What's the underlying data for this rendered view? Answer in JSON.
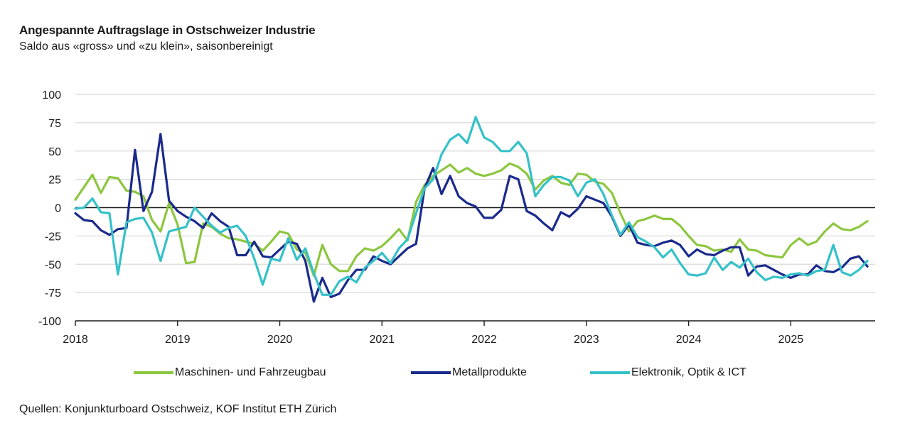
{
  "header": {
    "title": "Angespannte Auftragslage in Ostschweizer Industrie",
    "subtitle": "Saldo aus «gross» und «zu klein», saisonbereinigt"
  },
  "footer": {
    "source": "Quellen: Konjunkturboard Ostschweiz, KOF Institut ETH Zürich"
  },
  "chart_data": {
    "type": "line",
    "title": "Angespannte Auftragslage in Ostschweizer Industrie",
    "subtitle": "Saldo aus «gross» und «zu klein», saisonbereinigt",
    "xlabel": "",
    "ylabel": "",
    "x_start": "2018-01",
    "x_frequency": "monthly",
    "x_ticks": [
      "2018",
      "2019",
      "2020",
      "2021",
      "2022",
      "2023",
      "2024",
      "2025"
    ],
    "y_ticks": [
      100,
      75,
      50,
      25,
      0,
      -25,
      -50,
      -75,
      -100
    ],
    "ylim": [
      -100,
      100
    ],
    "xlim_months": [
      0,
      94
    ],
    "grid": true,
    "zero_line": true,
    "legend_position": "bottom",
    "series": [
      {
        "name": "Maschinen- und Fahrzeugbau",
        "color": "#8dc63f",
        "values": [
          7,
          18,
          29,
          13,
          27,
          26,
          15,
          14,
          10,
          -11,
          -21,
          4,
          -15,
          -49,
          -48,
          -14,
          -17,
          -23,
          -27,
          -28,
          -30,
          -32,
          -38,
          -30,
          -21,
          -23,
          -37,
          -40,
          -60,
          -33,
          -50,
          -56,
          -56,
          -43,
          -36,
          -38,
          -34,
          -27,
          -19,
          -29,
          5,
          20,
          28,
          33,
          38,
          31,
          35,
          30,
          28,
          30,
          33,
          39,
          36,
          30,
          16,
          24,
          28,
          22,
          20,
          30,
          29,
          23,
          21,
          13,
          -5,
          -21,
          -12,
          -10,
          -7,
          -10,
          -10,
          -16,
          -25,
          -33,
          -34,
          -38,
          -37,
          -39,
          -28,
          -37,
          -38,
          -42,
          -43,
          -44,
          -33,
          -27,
          -33,
          -30,
          -21,
          -14,
          -19,
          -20,
          -17,
          -12
        ]
      },
      {
        "name": "Metallprodukte",
        "color": "#1a2a8c",
        "values": [
          -5,
          -11,
          -12,
          -20,
          -24,
          -19,
          -18,
          51,
          -3,
          14,
          65,
          6,
          -3,
          -8,
          -12,
          -18,
          -5,
          -12,
          -17,
          -42,
          -42,
          -30,
          -43,
          -44,
          -37,
          -30,
          -32,
          -47,
          -83,
          -62,
          -79,
          -76,
          -64,
          -55,
          -55,
          -43,
          -47,
          -50,
          -43,
          -36,
          -32,
          17,
          35,
          12,
          28,
          10,
          4,
          1,
          -9,
          -9,
          -2,
          28,
          25,
          -3,
          -7,
          -14,
          -20,
          -4,
          -8,
          -1,
          10,
          7,
          4,
          -8,
          -25,
          -15,
          -31,
          -33,
          -34,
          -31,
          -29,
          -33,
          -43,
          -37,
          -41,
          -42,
          -38,
          -35,
          -35,
          -60,
          -52,
          -51,
          -55,
          -59,
          -62,
          -59,
          -59,
          -51,
          -56,
          -57,
          -53,
          -45,
          -43,
          -52
        ]
      },
      {
        "name": "Elektronik, Optik & ICT",
        "color": "#35c1c8",
        "values": [
          -1,
          0,
          8,
          -4,
          -5,
          -59,
          -13,
          -10,
          -9,
          -22,
          -47,
          -21,
          -19,
          -17,
          0,
          -8,
          -16,
          -22,
          -18,
          -16,
          -25,
          -45,
          -68,
          -45,
          -47,
          -27,
          -46,
          -36,
          -58,
          -77,
          -77,
          -65,
          -61,
          -66,
          -53,
          -47,
          -40,
          -49,
          -36,
          -28,
          -5,
          17,
          25,
          47,
          60,
          65,
          57,
          80,
          62,
          58,
          50,
          50,
          58,
          48,
          10,
          20,
          27,
          27,
          24,
          10,
          22,
          25,
          12,
          -7,
          -24,
          -13,
          -26,
          -30,
          -35,
          -44,
          -37,
          -49,
          -59,
          -60,
          -58,
          -44,
          -55,
          -48,
          -53,
          -45,
          -57,
          -64,
          -61,
          -62,
          -59,
          -58,
          -60,
          -56,
          -55,
          -33,
          -57,
          -60,
          -55,
          -47
        ]
      }
    ]
  }
}
